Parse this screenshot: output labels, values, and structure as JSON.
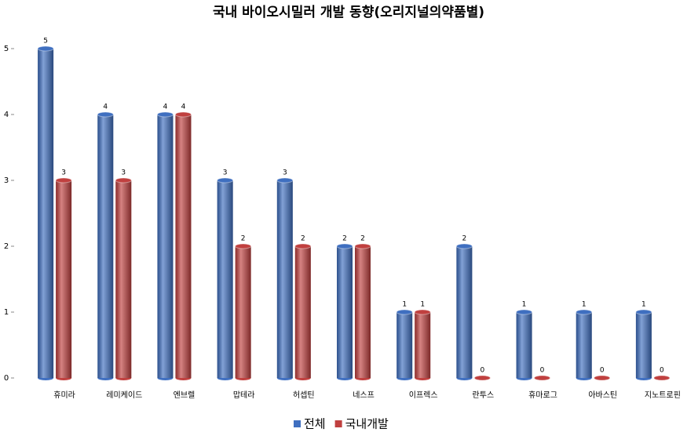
{
  "chart_data": {
    "type": "bar",
    "title": "국내 바이오시밀러 개발 동향(오리지널의약품별)",
    "categories": [
      "휴미라",
      "레미케이드",
      "엔브렐",
      "맙테라",
      "허셉틴",
      "네스프",
      "이프렉스",
      "란투스",
      "휴마로그",
      "아바스틴",
      "지노트로핀"
    ],
    "series": [
      {
        "name": "전체",
        "color": "#3f6fc0",
        "values": [
          5,
          4,
          4,
          3,
          3,
          2,
          1,
          2,
          1,
          1,
          1
        ]
      },
      {
        "name": "국내개발",
        "color": "#c0403f",
        "values": [
          3,
          3,
          4,
          2,
          2,
          2,
          1,
          0,
          0,
          0,
          0
        ]
      }
    ],
    "ylim": [
      0,
      5
    ],
    "yticks": [
      0,
      1,
      2,
      3,
      4,
      5
    ],
    "grid": false,
    "legend": "bottom"
  }
}
